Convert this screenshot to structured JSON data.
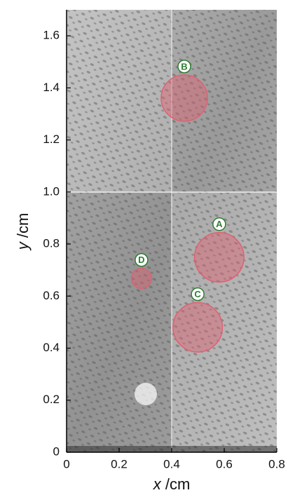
{
  "chart_data": {
    "type": "bubble",
    "x_label_var": "x",
    "x_label_unit": "/cm",
    "y_label_var": "y",
    "y_label_unit": "/cm",
    "xlim": [
      0,
      0.8
    ],
    "ylim": [
      0,
      1.7
    ],
    "xticks": [
      0,
      0.2,
      0.4,
      0.6,
      0.8
    ],
    "yticks": [
      0,
      0.2,
      0.4,
      0.6,
      0.8,
      {
        "value": 1,
        "label": "1.0"
      },
      1.2,
      1.4,
      1.6
    ],
    "color": "#e06070",
    "points": [
      {
        "label": "A",
        "x": 0.581,
        "y": 0.749,
        "r": 0.094
      },
      {
        "label": "B",
        "x": 0.448,
        "y": 1.361,
        "r": 0.088
      },
      {
        "label": "C",
        "x": 0.499,
        "y": 0.48,
        "r": 0.094
      },
      {
        "label": "D",
        "x": 0.285,
        "y": 0.668,
        "r": 0.038
      }
    ]
  }
}
